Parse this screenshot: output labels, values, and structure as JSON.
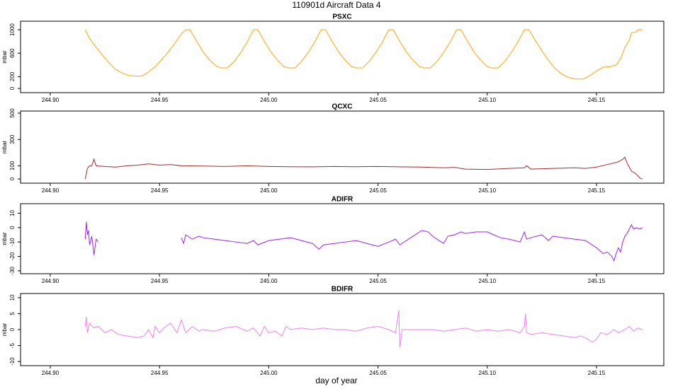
{
  "title": "110901d   Aircraft Data 4",
  "xlabel": "day of year",
  "chart_data": [
    {
      "type": "line",
      "title": "PSXC",
      "ylabel": "mbar",
      "color": "#ffa500",
      "xlim": [
        244.8864,
        245.1808
      ],
      "ylim": [
        -72,
        1145
      ],
      "xticks": [
        {
          "value": 244.9,
          "label": "244.90"
        },
        244.95,
        {
          "value": 245.0,
          "label": "245.00"
        },
        245.05,
        {
          "value": 245.1,
          "label": "245.10"
        },
        245.15
      ],
      "yticks": [
        0,
        200,
        600,
        1000
      ],
      "x": [
        244.916,
        244.918,
        244.921,
        244.924,
        244.927,
        244.93,
        244.933,
        244.936,
        244.939,
        244.942,
        244.945,
        244.948,
        244.951,
        244.954,
        244.957,
        244.96,
        244.962,
        244.964,
        244.967,
        244.97,
        244.973,
        244.976,
        244.978,
        244.981,
        244.984,
        244.987,
        244.99,
        244.993,
        244.995,
        244.998,
        245.001,
        245.004,
        245.007,
        245.009,
        245.012,
        245.015,
        245.018,
        245.021,
        245.024,
        245.026,
        245.029,
        245.032,
        245.035,
        245.038,
        245.04,
        245.043,
        245.046,
        245.049,
        245.052,
        245.055,
        245.057,
        245.06,
        245.063,
        245.066,
        245.069,
        245.071,
        245.074,
        245.077,
        245.08,
        245.083,
        245.086,
        245.088,
        245.091,
        245.094,
        245.097,
        245.1,
        245.102,
        245.105,
        245.108,
        245.111,
        245.114,
        245.117,
        245.119,
        245.122,
        245.125,
        245.128,
        245.131,
        245.134,
        245.137,
        245.14,
        245.144,
        245.147,
        245.15,
        245.153,
        245.156,
        245.159,
        245.161,
        245.163,
        245.165,
        245.166,
        245.168,
        245.169,
        245.171
      ],
      "values": [
        1000,
        850,
        700,
        560,
        430,
        320,
        260,
        220,
        210,
        210,
        280,
        370,
        490,
        620,
        770,
        930,
        1000,
        1000,
        800,
        620,
        480,
        380,
        350,
        350,
        450,
        600,
        780,
        1000,
        1000,
        800,
        620,
        480,
        370,
        350,
        350,
        460,
        610,
        790,
        1000,
        1000,
        800,
        620,
        480,
        370,
        350,
        350,
        460,
        610,
        790,
        1000,
        1000,
        800,
        620,
        480,
        370,
        350,
        350,
        460,
        610,
        790,
        1000,
        1000,
        800,
        620,
        480,
        370,
        350,
        350,
        460,
        610,
        790,
        1000,
        1000,
        820,
        640,
        480,
        340,
        250,
        190,
        160,
        160,
        220,
        300,
        360,
        370,
        400,
        500,
        700,
        820,
        950,
        960,
        1000,
        1000
      ]
    },
    {
      "type": "line",
      "title": "QCXC",
      "ylabel": "mbar",
      "color": "#a52a2a",
      "xlim": [
        244.8864,
        245.1808
      ],
      "ylim": [
        -32,
        516
      ],
      "xticks": [
        {
          "value": 244.9,
          "label": "244.90"
        },
        244.95,
        {
          "value": 245.0,
          "label": "245.00"
        },
        245.05,
        {
          "value": 245.1,
          "label": "245.10"
        },
        245.15
      ],
      "yticks": [
        0,
        100,
        300,
        500
      ],
      "x": [
        244.916,
        244.917,
        244.918,
        244.919,
        244.92,
        244.921,
        244.925,
        244.93,
        244.935,
        244.94,
        244.945,
        244.95,
        244.955,
        244.96,
        244.97,
        244.98,
        244.99,
        245.0,
        245.01,
        245.02,
        245.03,
        245.04,
        245.05,
        245.06,
        245.07,
        245.08,
        245.085,
        245.09,
        245.1,
        245.11,
        245.117,
        245.118,
        245.12,
        245.13,
        245.14,
        245.145,
        245.15,
        245.155,
        245.16,
        245.162,
        245.163,
        245.164,
        245.166,
        245.168,
        245.17,
        245.171
      ],
      "values": [
        0,
        80,
        100,
        100,
        150,
        100,
        95,
        90,
        100,
        105,
        115,
        105,
        110,
        100,
        98,
        95,
        100,
        95,
        93,
        92,
        95,
        93,
        95,
        92,
        90,
        85,
        88,
        75,
        72,
        80,
        85,
        100,
        75,
        80,
        85,
        80,
        90,
        110,
        130,
        150,
        165,
        120,
        60,
        40,
        5,
        0
      ]
    },
    {
      "type": "line",
      "title": "ADIFR",
      "ylabel": "mbar",
      "color": "#a020f0",
      "xlim": [
        244.8864,
        245.1808
      ],
      "ylim": [
        -32,
        16.6
      ],
      "xticks": [
        {
          "value": 244.9,
          "label": "244.90"
        },
        244.95,
        {
          "value": 245.0,
          "label": "245.00"
        },
        245.05,
        {
          "value": 245.1,
          "label": "245.10"
        },
        245.15
      ],
      "yticks": [
        -30,
        -20,
        -10,
        0,
        10
      ],
      "x": [
        244.916,
        244.9165,
        244.917,
        244.9175,
        244.918,
        244.919,
        244.92,
        244.921,
        244.922,
        244.94,
        244.96,
        244.961,
        244.962,
        244.965,
        244.968,
        244.97,
        244.975,
        244.98,
        244.985,
        244.99,
        244.993,
        244.995,
        245.0,
        245.005,
        245.01,
        245.015,
        245.02,
        245.023,
        245.025,
        245.03,
        245.035,
        245.04,
        245.045,
        245.05,
        245.055,
        245.058,
        245.06,
        245.065,
        245.07,
        245.073,
        245.075,
        245.078,
        245.08,
        245.082,
        245.085,
        245.088,
        245.09,
        245.095,
        245.1,
        245.103,
        245.106,
        245.11,
        245.115,
        245.117,
        245.118,
        245.12,
        245.125,
        245.128,
        245.13,
        245.135,
        245.14,
        245.145,
        245.148,
        245.15,
        245.153,
        245.155,
        245.157,
        245.158,
        245.159,
        245.16,
        245.161,
        245.162,
        245.163,
        245.164,
        245.165,
        245.166,
        245.167,
        245.168,
        245.17,
        245.171
      ],
      "values": [
        -8,
        4,
        -5,
        -2,
        -12,
        -6,
        -19,
        -8,
        -10,
        null,
        -7,
        -11,
        -5,
        -8,
        -6,
        -7,
        -8,
        -9,
        -10,
        -11,
        -9,
        -12,
        -9,
        -8,
        -7,
        -9,
        -11,
        -15,
        -12,
        -11,
        -10,
        -9,
        -11,
        -13,
        -10,
        -8,
        -12,
        -7,
        -2,
        -3,
        -6,
        -9,
        -11,
        -6,
        -5,
        -3,
        -4,
        -3,
        -3,
        -5,
        -7,
        -8,
        -10,
        -3,
        -8,
        -7,
        -5,
        -9,
        -6,
        -7,
        -8,
        -9,
        -12,
        -14,
        -18,
        -17,
        -20,
        -23,
        -18,
        -14,
        -17,
        -10,
        -6,
        -4,
        -1,
        2,
        -1,
        0,
        -1,
        0
      ]
    },
    {
      "type": "line",
      "title": "BDIFR",
      "ylabel": "mbar",
      "color": "#ee82ee",
      "xlim": [
        244.8864,
        245.1808
      ],
      "ylim": [
        -11.3,
        11.3
      ],
      "xticks": [
        {
          "value": 244.9,
          "label": "244.90"
        },
        244.95,
        {
          "value": 245.0,
          "label": "245.00"
        },
        245.05,
        {
          "value": 245.1,
          "label": "245.10"
        },
        245.15
      ],
      "yticks": [
        -10,
        -5,
        0,
        5,
        10
      ],
      "x": [
        244.916,
        244.9165,
        244.917,
        244.918,
        244.92,
        244.922,
        244.925,
        244.928,
        244.931,
        244.935,
        244.94,
        244.943,
        244.945,
        244.947,
        244.948,
        244.95,
        244.952,
        244.955,
        244.958,
        244.96,
        244.962,
        244.965,
        244.968,
        244.97,
        244.975,
        244.98,
        244.985,
        244.99,
        244.993,
        244.996,
        244.998,
        245.0,
        245.003,
        245.006,
        245.008,
        245.01,
        245.015,
        245.02,
        245.025,
        245.03,
        245.035,
        245.04,
        245.045,
        245.05,
        245.055,
        245.058,
        245.0595,
        245.06,
        245.061,
        245.065,
        245.07,
        245.075,
        245.08,
        245.085,
        245.09,
        245.095,
        245.1,
        245.105,
        245.11,
        245.115,
        245.117,
        245.1175,
        245.118,
        245.12,
        245.125,
        245.13,
        245.135,
        245.14,
        245.143,
        245.146,
        245.148,
        245.15,
        245.152,
        245.155,
        245.158,
        245.16,
        245.163,
        245.165,
        245.167,
        245.169,
        245.171
      ],
      "values": [
        1,
        4,
        -1,
        2,
        0.5,
        1,
        -1,
        0,
        -1.5,
        -2,
        -2.5,
        -2,
        0,
        -2.5,
        1,
        -1,
        0.5,
        2,
        -1,
        3,
        -1,
        1,
        -0.5,
        0,
        -0.5,
        0.5,
        1,
        -0.5,
        0.5,
        -2,
        1,
        -1,
        -0.5,
        -2,
        1,
        0,
        0.5,
        0,
        0.5,
        0,
        0,
        -0.5,
        0.5,
        1,
        0,
        -1,
        6,
        -5.5,
        0,
        0,
        0,
        0,
        -0.5,
        0,
        0.5,
        -0.5,
        0,
        -0.5,
        0,
        -1,
        1,
        5,
        -1,
        -1.5,
        -1,
        -1.5,
        -2,
        -2.5,
        -2,
        -3,
        -4,
        -3,
        -1,
        -1.5,
        0,
        -1,
        0,
        1,
        -0.5,
        0.5,
        0
      ]
    }
  ]
}
